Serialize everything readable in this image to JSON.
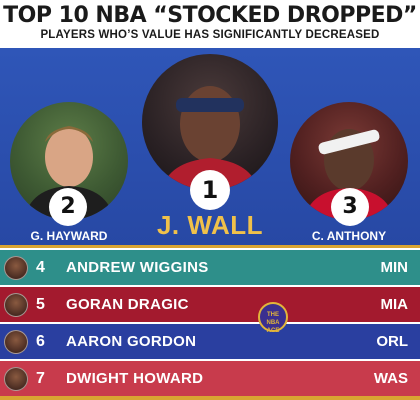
{
  "header": {
    "title": "TOP 10 NBA “STOCKED DROPPED”",
    "subtitle": "PLAYERS WHO’S VALUE HAS SIGNIFICANTLY DECREASED"
  },
  "top_three": [
    {
      "rank": "1",
      "name": "J. WALL"
    },
    {
      "rank": "2",
      "name": "G. HAYWARD"
    },
    {
      "rank": "3",
      "name": "C. ANTHONY"
    }
  ],
  "list": [
    {
      "rank": "4",
      "name": "ANDREW WIGGINS",
      "team": "MIN",
      "color": "#2e8f8a"
    },
    {
      "rank": "5",
      "name": "GORAN DRAGIC",
      "team": "MIA",
      "color": "#a31a2e"
    },
    {
      "rank": "6",
      "name": "AARON GORDON",
      "team": "ORL",
      "color": "#2a3fa0"
    },
    {
      "rank": "7",
      "name": "DWIGHT HOWARD",
      "team": "WAS",
      "color": "#c83b4c"
    }
  ],
  "watermark_text": "THE NBA ACE",
  "colors": {
    "panel_blue": "#2c50b0",
    "accent_gold": "#f0c14a"
  },
  "icons": [
    "player-photo-icon",
    "rank-number-badge",
    "logo-watermark"
  ]
}
